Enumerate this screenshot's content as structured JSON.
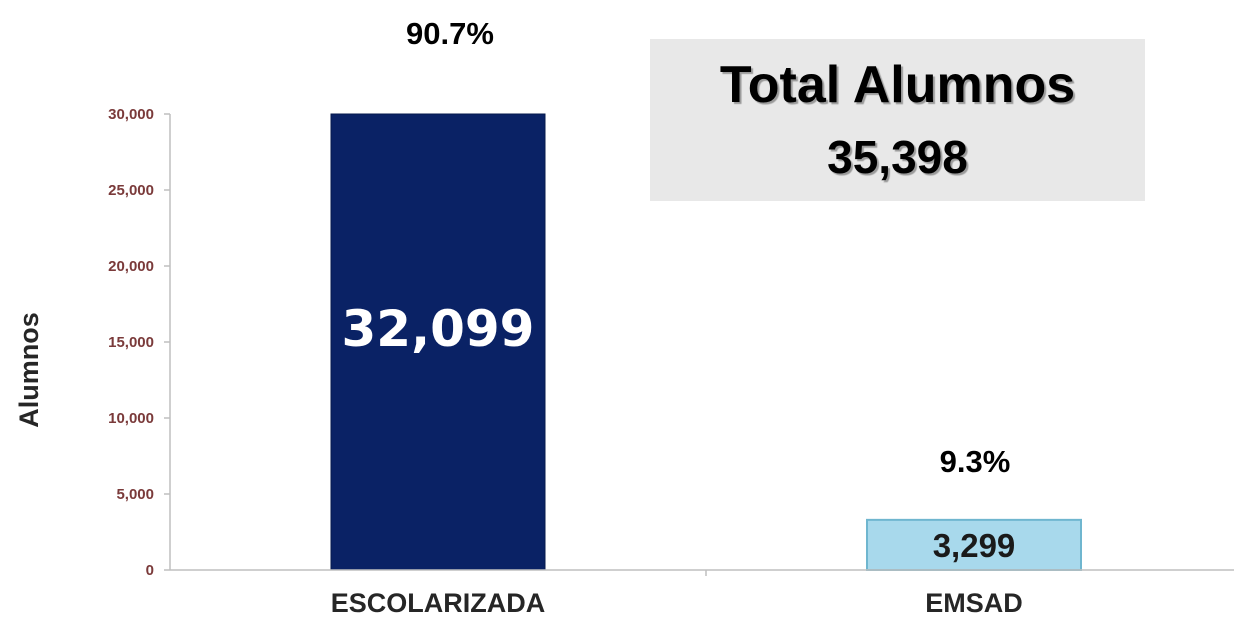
{
  "chart_data": {
    "type": "bar",
    "categories": [
      "ESCOLARIZADA",
      "EMSAD"
    ],
    "values": [
      32099,
      3299
    ],
    "value_labels": [
      "32,099",
      "3,299"
    ],
    "percent_labels": [
      "90.7%",
      "9.3%"
    ],
    "ylabel": "Alumnos",
    "xlabel": "",
    "ylim": [
      0,
      30000
    ],
    "y_ticks": [
      {
        "value": 0,
        "label": "0"
      },
      {
        "value": 5000,
        "label": "5,000"
      },
      {
        "value": 10000,
        "label": "10,000"
      },
      {
        "value": 15000,
        "label": "15,000"
      },
      {
        "value": 20000,
        "label": "20,000"
      },
      {
        "value": 25000,
        "label": "25,000"
      },
      {
        "value": 30000,
        "label": "30,000"
      }
    ],
    "bar_colors": [
      "#0a2265",
      "#a8d9ec"
    ],
    "grid": false,
    "legend": "none"
  },
  "total_box": {
    "title": "Total Alumnos",
    "value": "35,398"
  }
}
